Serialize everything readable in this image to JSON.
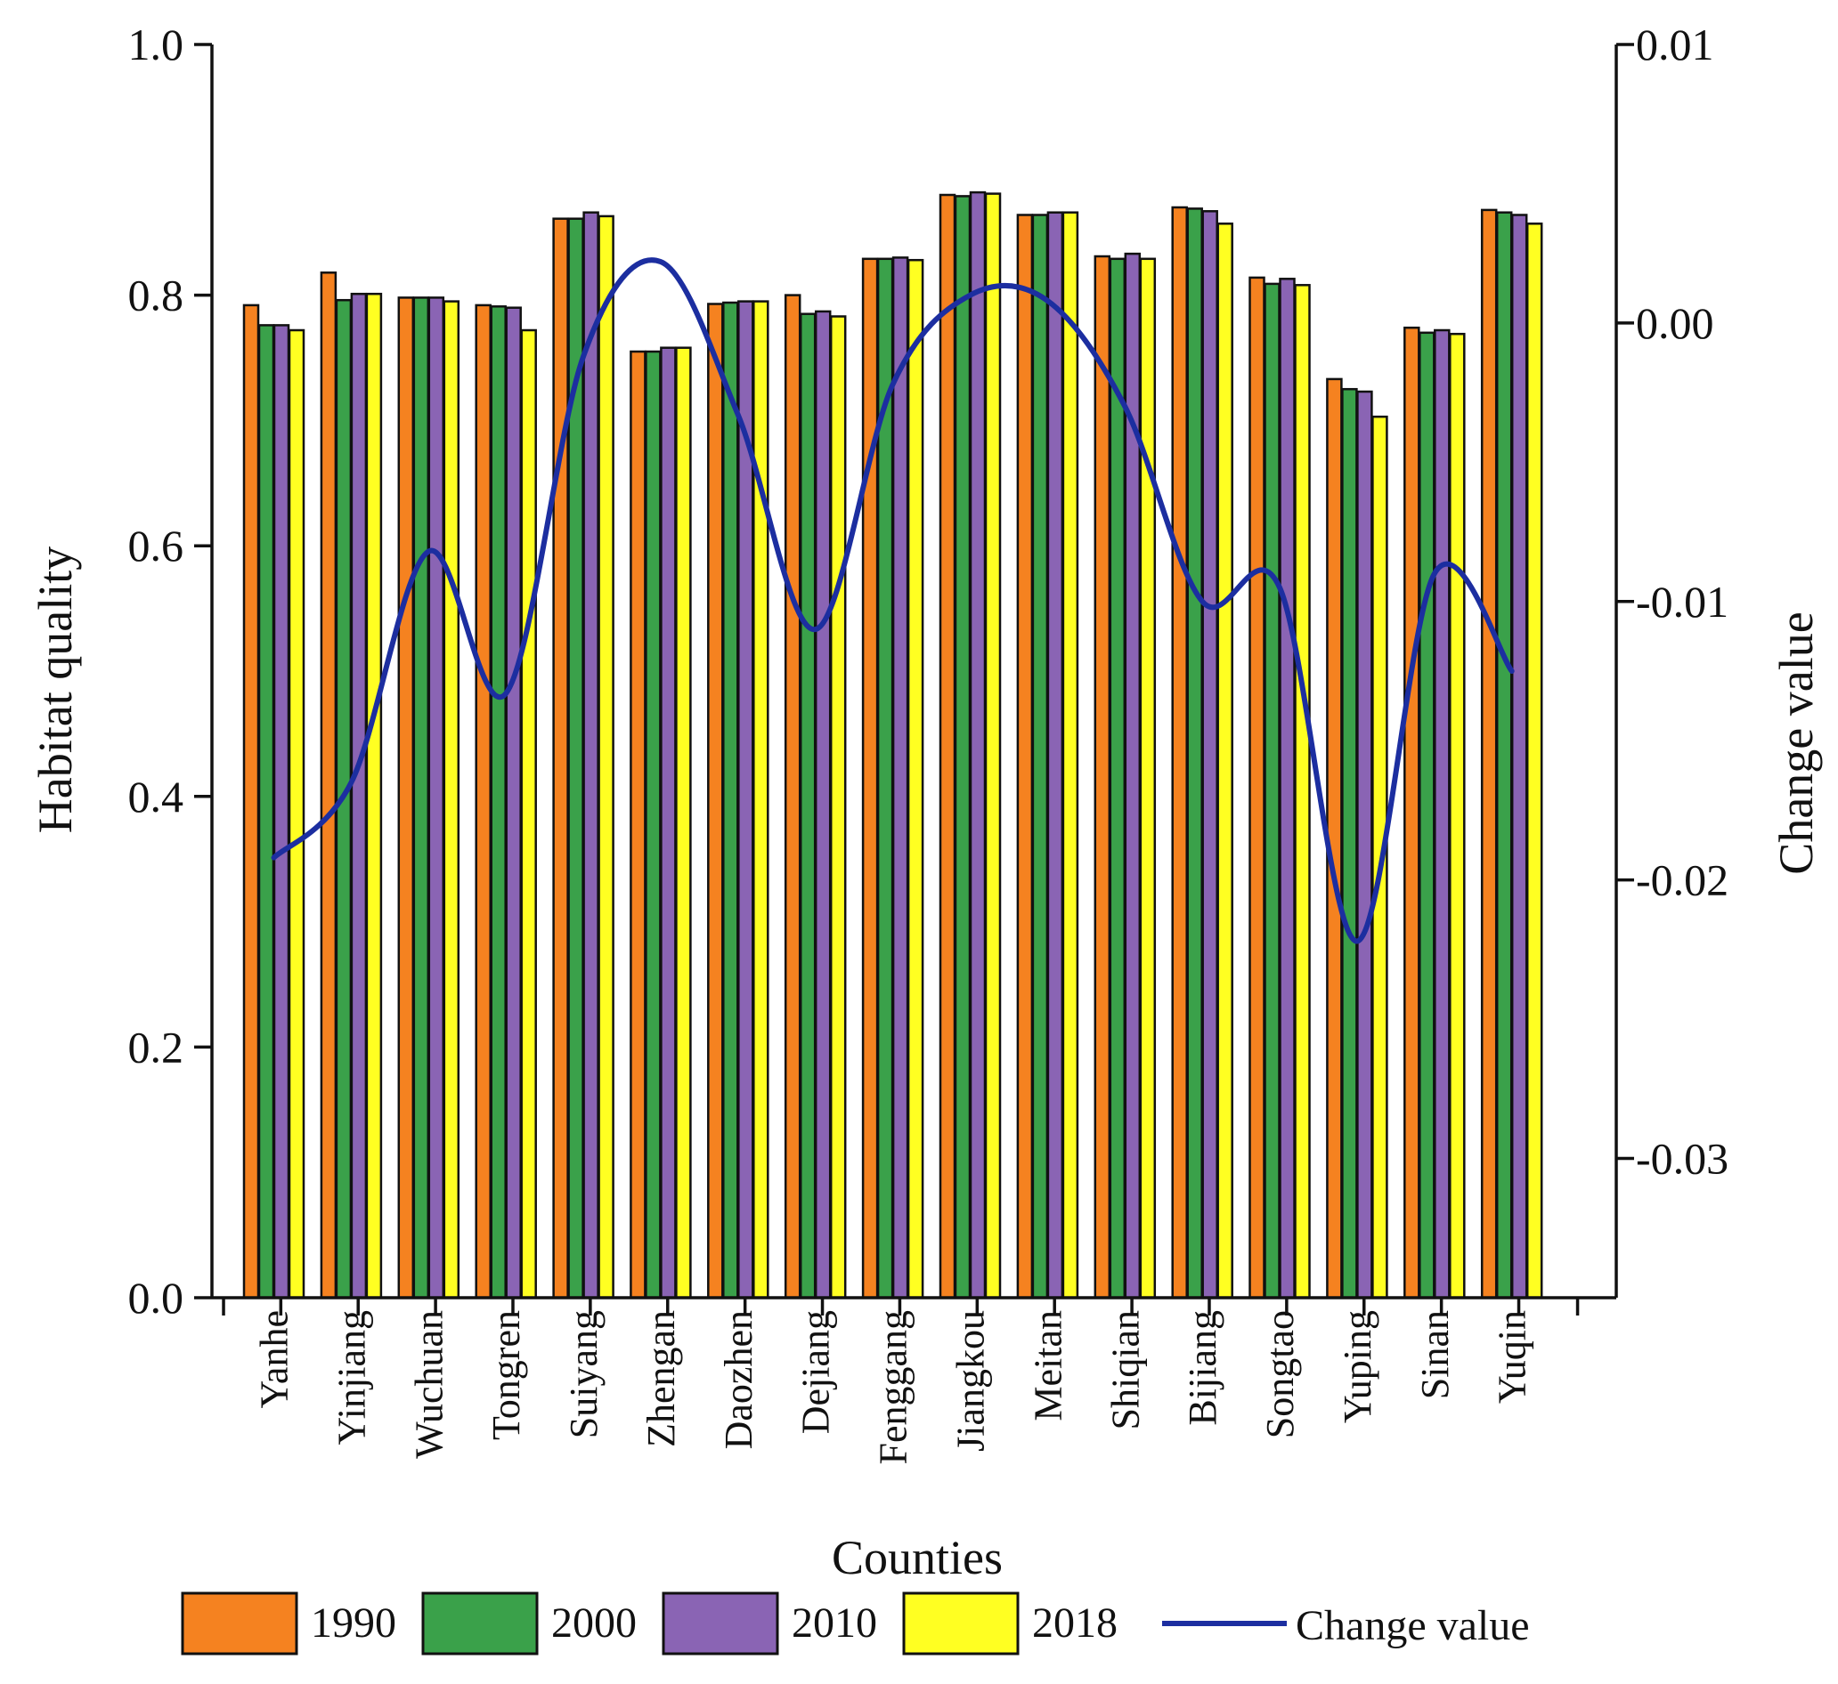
{
  "chart_data": {
    "type": "bar",
    "secondary_type": "line",
    "categories": [
      "Yanhe",
      "Yinjiang",
      "Wuchuan",
      "Tongren",
      "Suiyang",
      "Zhengan",
      "Daozhen",
      "Dejiang",
      "Fenggang",
      "Jiangkou",
      "Meitan",
      "Shiqian",
      "Bijiang",
      "Songtao",
      "Yuping",
      "Sinan",
      "Yuqin"
    ],
    "series": [
      {
        "name": "1990",
        "color": "#f58220",
        "values": [
          0.792,
          0.818,
          0.798,
          0.792,
          0.861,
          0.755,
          0.793,
          0.8,
          0.829,
          0.88,
          0.864,
          0.831,
          0.87,
          0.814,
          0.733,
          0.774,
          0.868
        ]
      },
      {
        "name": "2000",
        "color": "#3aa14a",
        "values": [
          0.776,
          0.796,
          0.798,
          0.791,
          0.861,
          0.755,
          0.794,
          0.785,
          0.829,
          0.879,
          0.864,
          0.829,
          0.869,
          0.809,
          0.725,
          0.77,
          0.866
        ]
      },
      {
        "name": "2010",
        "color": "#8a64b4",
        "values": [
          0.776,
          0.801,
          0.798,
          0.79,
          0.866,
          0.758,
          0.795,
          0.787,
          0.83,
          0.882,
          0.866,
          0.833,
          0.867,
          0.813,
          0.723,
          0.772,
          0.864
        ]
      },
      {
        "name": "2018",
        "color": "#ffff22",
        "values": [
          0.772,
          0.801,
          0.795,
          0.772,
          0.863,
          0.758,
          0.795,
          0.783,
          0.828,
          0.881,
          0.866,
          0.829,
          0.857,
          0.808,
          0.703,
          0.769,
          0.857
        ]
      }
    ],
    "line_series": {
      "name": "Change value",
      "color": "#1c2ea0",
      "axis": "right",
      "values": [
        -0.0192,
        -0.0165,
        -0.0082,
        -0.0133,
        -0.0012,
        0.0022,
        -0.0033,
        -0.011,
        -0.0022,
        0.001,
        0.0008,
        -0.003,
        -0.01,
        -0.0095,
        -0.0222,
        -0.009,
        -0.0125
      ]
    },
    "xlabel": "Counties",
    "ylabel": "Habitat quality",
    "y2label": "Change value",
    "ylim": [
      0.0,
      1.0
    ],
    "y2lim": [
      -0.035,
      0.01
    ],
    "yticks": [
      "0.0",
      "0.2",
      "0.4",
      "0.6",
      "0.8",
      "1.0"
    ],
    "y2ticks": [
      "0.01",
      "0.00",
      "-0.01",
      "-0.02",
      "-0.03"
    ],
    "y2tick_values": [
      0.01,
      0.0,
      -0.01,
      -0.02,
      -0.03
    ],
    "grid": false,
    "legend_position": "bottom"
  }
}
